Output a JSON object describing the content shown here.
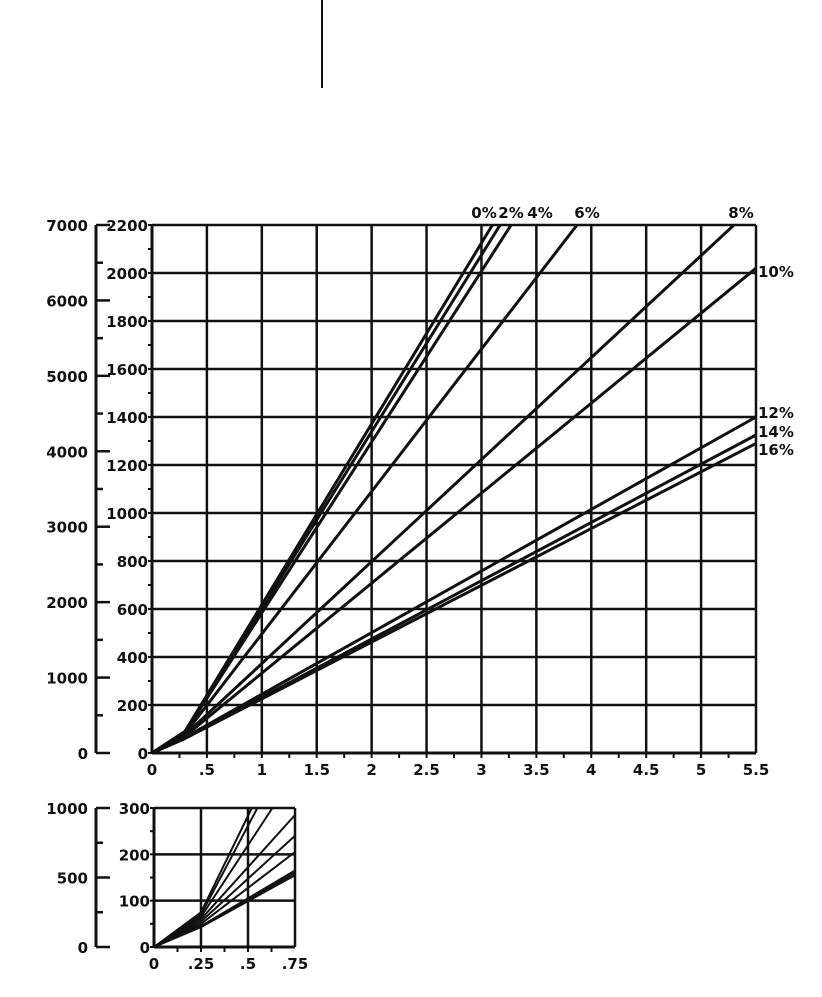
{
  "chart_data": [
    {
      "type": "line",
      "title": "",
      "xlabel": "",
      "ylabel": "",
      "x_ticks": [
        "0",
        ".5",
        "1",
        "1.5",
        "2",
        "2.5",
        "3",
        "3.5",
        "4",
        "4.5",
        "5",
        "5.5"
      ],
      "xlim": [
        0,
        5.5
      ],
      "ylim": [
        0,
        2200
      ],
      "y_ticks_inner": [
        "0",
        "200",
        "400",
        "600",
        "800",
        "1000",
        "1200",
        "1400",
        "1600",
        "1800",
        "2000",
        "2200"
      ],
      "ylim_outer": [
        0,
        7000
      ],
      "y_ticks_outer": [
        "0",
        "1000",
        "2000",
        "3000",
        "4000",
        "5000",
        "6000",
        "7000"
      ],
      "grid": true,
      "series": [
        {
          "name": "0%",
          "points": [
            [
              0,
              0
            ],
            [
              0.3,
              90
            ],
            [
              3.1,
              2200
            ]
          ]
        },
        {
          "name": "2%",
          "points": [
            [
              0,
              0
            ],
            [
              0.3,
              88
            ],
            [
              3.17,
              2200
            ]
          ]
        },
        {
          "name": "4%",
          "points": [
            [
              0,
              0
            ],
            [
              0.3,
              85
            ],
            [
              3.27,
              2200
            ]
          ]
        },
        {
          "name": "6%",
          "points": [
            [
              0,
              0
            ],
            [
              0.3,
              80
            ],
            [
              3.87,
              2200
            ]
          ]
        },
        {
          "name": "8%",
          "points": [
            [
              0,
              0
            ],
            [
              0.3,
              75
            ],
            [
              5.3,
              2200
            ]
          ]
        },
        {
          "name": "10%",
          "points": [
            [
              0,
              0
            ],
            [
              0.3,
              70
            ],
            [
              5.5,
              2020
            ]
          ]
        },
        {
          "name": "12%",
          "points": [
            [
              0,
              0
            ],
            [
              0.3,
              65
            ],
            [
              5.5,
              1400
            ]
          ]
        },
        {
          "name": "14%",
          "points": [
            [
              0,
              0
            ],
            [
              0.3,
              62
            ],
            [
              5.5,
              1325
            ]
          ]
        },
        {
          "name": "16%",
          "points": [
            [
              0,
              0
            ],
            [
              0.3,
              60
            ],
            [
              5.5,
              1290
            ]
          ]
        }
      ]
    },
    {
      "type": "line",
      "title": "",
      "xlabel": "",
      "ylabel": "",
      "x_ticks": [
        "0",
        ".25",
        ".5",
        ".75"
      ],
      "xlim": [
        0,
        0.75
      ],
      "ylim": [
        0,
        300
      ],
      "y_ticks_inner": [
        "0",
        "100",
        "200",
        "300"
      ],
      "ylim_outer": [
        0,
        1000
      ],
      "y_ticks_outer": [
        "0",
        "500",
        "1000"
      ],
      "grid": true,
      "series": [
        {
          "name": "",
          "points": [
            [
              0,
              0
            ],
            [
              0.25,
              75
            ],
            [
              0.52,
              300
            ]
          ]
        },
        {
          "name": "",
          "points": [
            [
              0,
              0
            ],
            [
              0.25,
              70
            ],
            [
              0.55,
              300
            ]
          ]
        },
        {
          "name": "",
          "points": [
            [
              0,
              0
            ],
            [
              0.25,
              65
            ],
            [
              0.63,
              300
            ]
          ]
        },
        {
          "name": "",
          "points": [
            [
              0,
              0
            ],
            [
              0.25,
              60
            ],
            [
              0.75,
              285
            ]
          ]
        },
        {
          "name": "",
          "points": [
            [
              0,
              0
            ],
            [
              0.25,
              55
            ],
            [
              0.75,
              240
            ]
          ]
        },
        {
          "name": "",
          "points": [
            [
              0,
              0
            ],
            [
              0.25,
              50
            ],
            [
              0.75,
              205
            ]
          ]
        },
        {
          "name": "",
          "points": [
            [
              0,
              0
            ],
            [
              0.25,
              45
            ],
            [
              0.75,
              165
            ]
          ]
        },
        {
          "name": "",
          "points": [
            [
              0,
              0
            ],
            [
              0.25,
              44
            ],
            [
              0.75,
              160
            ]
          ]
        },
        {
          "name": "",
          "points": [
            [
              0,
              0
            ],
            [
              0.25,
              43
            ],
            [
              0.75,
              155
            ]
          ]
        }
      ]
    }
  ]
}
